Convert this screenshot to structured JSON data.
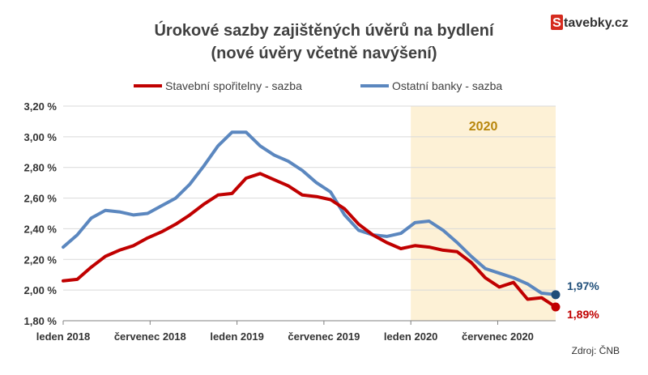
{
  "logo": {
    "letter": "S",
    "rest": "tavebky.cz",
    "accent": "#d52b1e",
    "text_color": "#333333"
  },
  "chart_data": {
    "type": "line",
    "title": "Úrokové sazby zajištěných úvěrů na bydlení",
    "subtitle": "(nové úvěry včetně navýšení)",
    "x_tick_labels": [
      "leden 2018",
      "červenec 2018",
      "leden 2019",
      "červenec 2019",
      "leden 2020",
      "červenec 2020"
    ],
    "y_tick_labels": [
      "1,80 %",
      "2,00 %",
      "2,20 %",
      "2,40 %",
      "2,60 %",
      "2,80 %",
      "3,00 %",
      "3,20 %"
    ],
    "ylim": [
      1.8,
      3.2
    ],
    "y_ticks": [
      1.8,
      2.0,
      2.2,
      2.4,
      2.6,
      2.8,
      3.0,
      3.2
    ],
    "x_months": 34,
    "x_tick_positions": [
      0,
      6,
      12,
      18,
      24,
      30
    ],
    "highlight": {
      "label": "2020",
      "from": 24,
      "to": 34,
      "fill": "#fdf1d6",
      "text_color": "#b8860b"
    },
    "series": [
      {
        "name": "Stavební spořitelny - sazba",
        "color": "#c00000",
        "values": [
          2.06,
          2.07,
          2.15,
          2.22,
          2.26,
          2.29,
          2.34,
          2.38,
          2.43,
          2.49,
          2.56,
          2.62,
          2.63,
          2.73,
          2.76,
          2.72,
          2.68,
          2.62,
          2.61,
          2.59,
          2.53,
          2.43,
          2.36,
          2.31,
          2.27,
          2.29,
          2.28,
          2.26,
          2.25,
          2.18,
          2.08,
          2.02,
          2.05,
          1.94,
          1.95,
          1.89
        ],
        "end_label": "1,89%"
      },
      {
        "name": "Ostatní banky - sazba",
        "color": "#5b87bf",
        "values": [
          2.28,
          2.36,
          2.47,
          2.52,
          2.51,
          2.49,
          2.5,
          2.55,
          2.6,
          2.69,
          2.81,
          2.94,
          3.03,
          3.03,
          2.94,
          2.88,
          2.84,
          2.78,
          2.7,
          2.64,
          2.49,
          2.39,
          2.36,
          2.35,
          2.37,
          2.44,
          2.45,
          2.39,
          2.31,
          2.22,
          2.14,
          2.11,
          2.08,
          2.04,
          1.98,
          1.97
        ],
        "end_label": "1,97%",
        "end_label_color": "#1f4e79"
      }
    ],
    "source": "Zdroj: ČNB"
  }
}
